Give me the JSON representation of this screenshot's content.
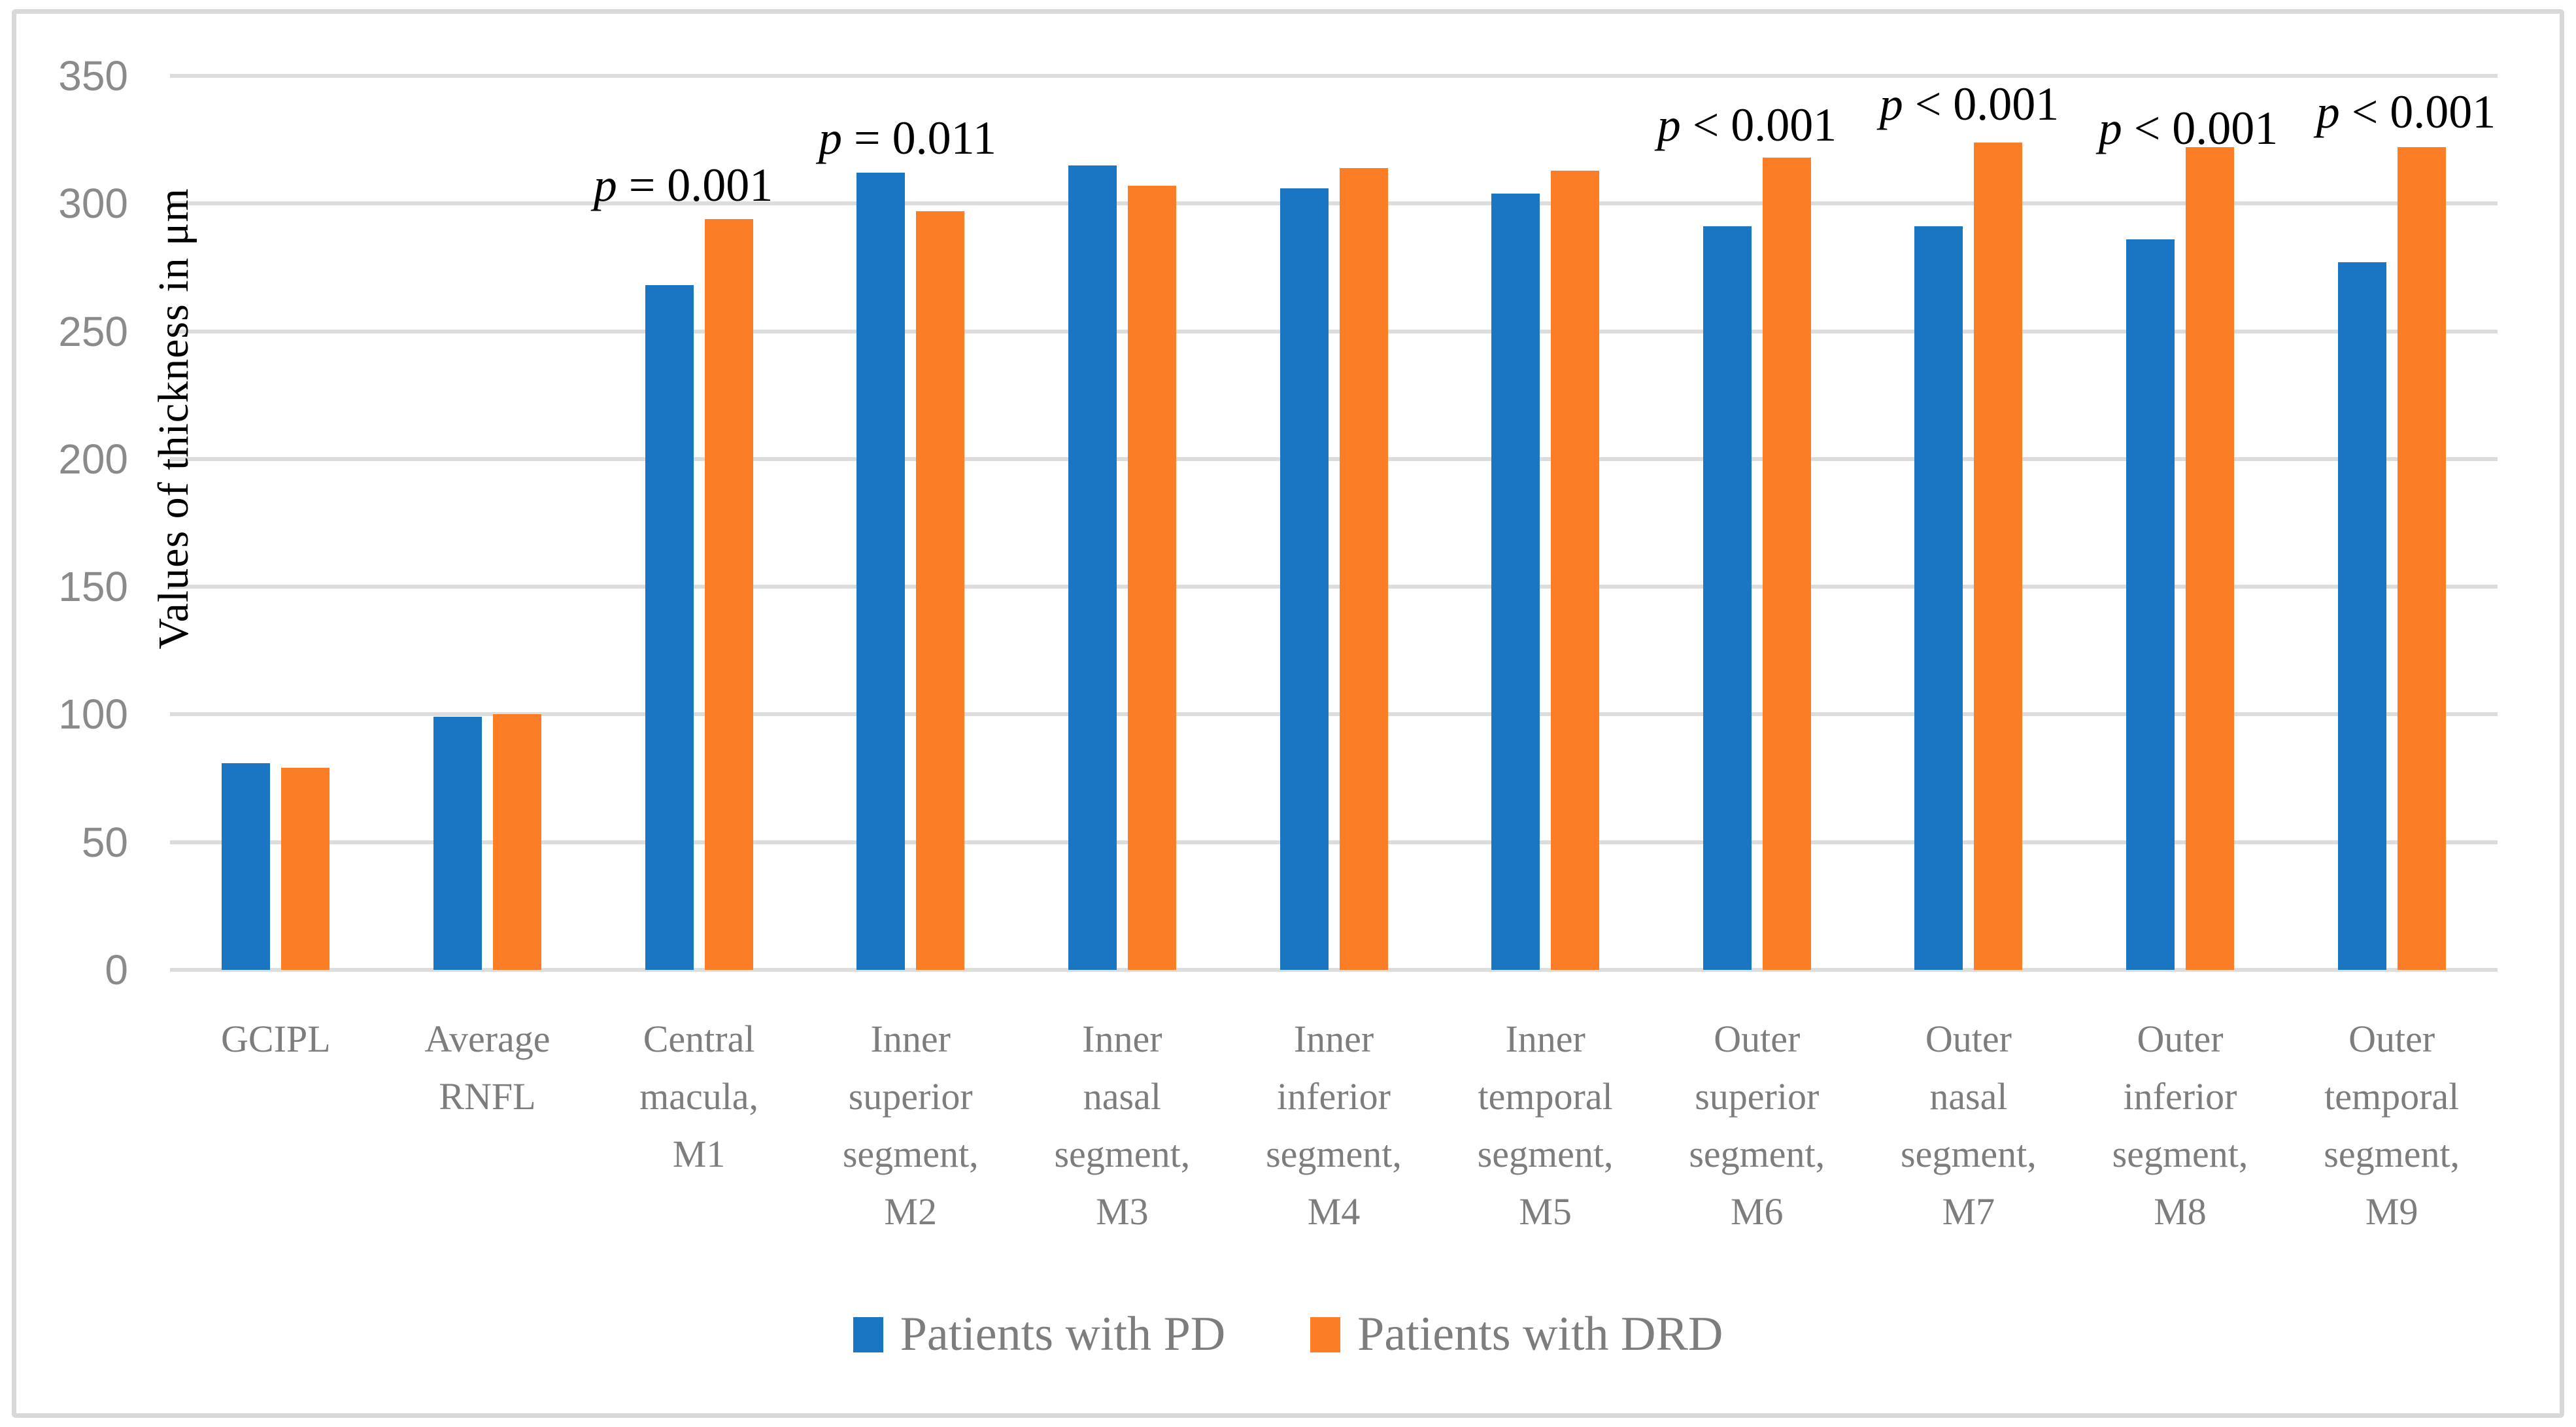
{
  "figure": {
    "background_color": "#FFFFFF",
    "border_color": "#D8D8D8",
    "gridline_color": "#DCDCDC",
    "tick_label_color": "#8A8A8A",
    "category_label_color": "#7D7D7D",
    "annotation_color": "#000000"
  },
  "chart_data": {
    "type": "bar",
    "title": "",
    "xlabel": "",
    "ylabel": "Values of thickness in μm",
    "ylim": [
      0,
      350
    ],
    "ytick_step": 50,
    "yticks": [
      0,
      50,
      100,
      150,
      200,
      250,
      300,
      350
    ],
    "grid": true,
    "legend_position": "bottom",
    "categories": [
      "GCIPL",
      "Average RNFL",
      "Central macula, M1",
      "Inner superior segment, M2",
      "Inner nasal segment, M3",
      "Inner inferior segment, M4",
      "Inner temporal segment, M5",
      "Outer superior segment, M6",
      "Outer nasal segment, M7",
      "Outer inferior segment, M8",
      "Outer temporal segment, M9"
    ],
    "series": [
      {
        "name": "Patients with PD",
        "color": "#1A75C2",
        "values": [
          81,
          99,
          268,
          312,
          315,
          306,
          304,
          291,
          291,
          286,
          277
        ]
      },
      {
        "name": "Patients with DRD",
        "color": "#FB7D25",
        "values": [
          79,
          100,
          294,
          297,
          307,
          314,
          313,
          318,
          324,
          322,
          322
        ]
      }
    ],
    "annotations": [
      {
        "category_index": 2,
        "text": "p = 0.001"
      },
      {
        "category_index": 3,
        "text": "p = 0.011"
      },
      {
        "category_index": 7,
        "text": "p < 0.001"
      },
      {
        "category_index": 8,
        "text": "p < 0.001"
      },
      {
        "category_index": 9,
        "text": "p < 0.001"
      },
      {
        "category_index": 10,
        "text": "p < 0.001"
      }
    ]
  }
}
